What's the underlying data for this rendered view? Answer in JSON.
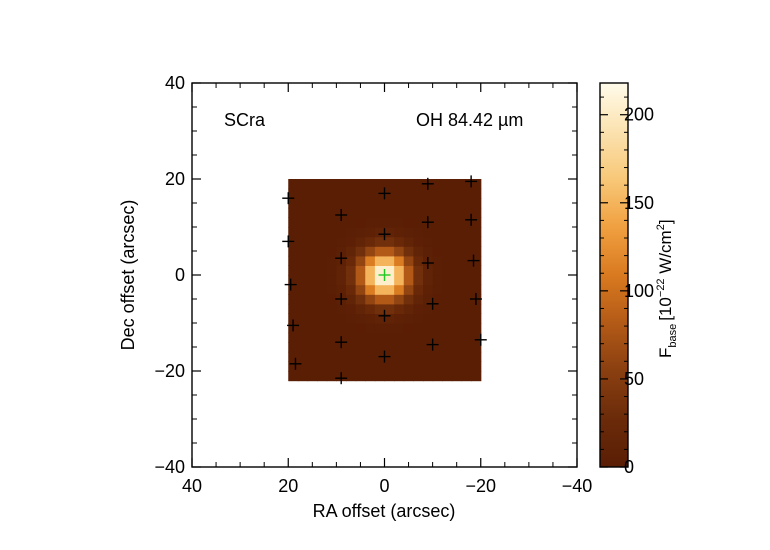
{
  "chart_data": {
    "type": "heatmap",
    "source_label": "SCra",
    "line_label": "OH 84.42 µm",
    "xlabel": "RA offset (arcsec)",
    "ylabel": "Dec offset (arcsec)",
    "x_range": [
      40,
      -40
    ],
    "y_range": [
      -40,
      40
    ],
    "x_ticks": [
      40,
      20,
      0,
      -20,
      -40
    ],
    "y_ticks": [
      -40,
      -20,
      0,
      20,
      40
    ],
    "x_tick_labels": [
      "40",
      "20",
      "0",
      "−20",
      "−40"
    ],
    "y_tick_labels": [
      "−40",
      "−20",
      "0",
      "20",
      "40"
    ],
    "map_extent": {
      "ra": [
        20,
        -20
      ],
      "dec": [
        -22,
        20
      ]
    },
    "peak": {
      "ra": 0,
      "dec": 0,
      "value": 220
    },
    "gaussian_fwhm_arcsec": 8.5,
    "background_value": 0,
    "colorbar": {
      "range": [
        0,
        218
      ],
      "ticks": [
        0,
        50,
        100,
        150,
        200
      ],
      "tick_labels": [
        "0",
        "50",
        "100",
        "150",
        "200"
      ],
      "label_main": "F",
      "label_sub": "base",
      "label_units": "[10",
      "label_exp": "−22",
      "label_units2": " W/cm",
      "label_exp2": "2",
      "label_close": "]"
    },
    "spaxels": [
      {
        "ra": 20,
        "dec": 16
      },
      {
        "ra": 9,
        "dec": 12.5
      },
      {
        "ra": 0,
        "dec": 17
      },
      {
        "ra": -9,
        "dec": 19
      },
      {
        "ra": -18,
        "dec": 19.5
      },
      {
        "ra": 20,
        "dec": 7
      },
      {
        "ra": 9,
        "dec": 3.5
      },
      {
        "ra": 0,
        "dec": 8.5
      },
      {
        "ra": -9,
        "dec": 11
      },
      {
        "ra": -18,
        "dec": 11.5
      },
      {
        "ra": 19.5,
        "dec": -2
      },
      {
        "ra": 9,
        "dec": -5
      },
      {
        "ra": 0,
        "dec": 0,
        "central": true
      },
      {
        "ra": -9,
        "dec": 2.5
      },
      {
        "ra": -18.5,
        "dec": 3
      },
      {
        "ra": 19,
        "dec": -10.5
      },
      {
        "ra": 9,
        "dec": -14
      },
      {
        "ra": 0,
        "dec": -8.5
      },
      {
        "ra": -10,
        "dec": -6
      },
      {
        "ra": -19,
        "dec": -5
      },
      {
        "ra": 18.5,
        "dec": -18.5
      },
      {
        "ra": 9,
        "dec": -21.5
      },
      {
        "ra": 0,
        "dec": -17
      },
      {
        "ra": -10,
        "dec": -14.5
      },
      {
        "ra": -20,
        "dec": -13.5
      }
    ],
    "colors": {
      "spaxel_marker": "#000000",
      "central_marker": "#22c922",
      "colormap": [
        "#5a1e05",
        "#6b2b0a",
        "#8a3f10",
        "#b35a17",
        "#d97a20",
        "#f0a040",
        "#f8c878",
        "#fbe2b0",
        "#fffbea"
      ]
    }
  }
}
